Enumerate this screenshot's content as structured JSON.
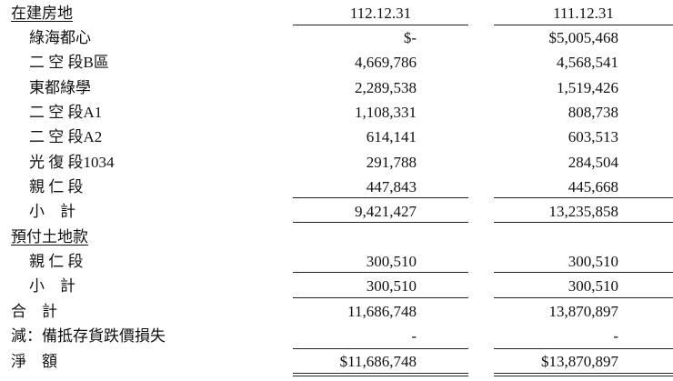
{
  "header": {
    "label": "在建房地",
    "col1": "112.12.31",
    "col2": "111.12.31"
  },
  "rows": [
    {
      "label": "綠海都心",
      "v1": "$-",
      "v2": "$5,005,468"
    },
    {
      "label": "二 空 段B區",
      "v1": "4,669,786",
      "v2": "4,568,541"
    },
    {
      "label": "東都綠學",
      "v1": "2,289,538",
      "v2": "1,519,426"
    },
    {
      "label": "二 空 段A1",
      "v1": "1,108,331",
      "v2": "808,738"
    },
    {
      "label": "二 空 段A2",
      "v1": "614,141",
      "v2": "603,513"
    },
    {
      "label": "光 復 段1034",
      "v1": "291,788",
      "v2": "284,504"
    },
    {
      "label": "親 仁 段",
      "v1": "447,843",
      "v2": "445,668"
    },
    {
      "label": "小    計",
      "v1": "9,421,427",
      "v2": "13,235,858"
    }
  ],
  "section2": {
    "label": "預付土地款"
  },
  "rows2": [
    {
      "label": "親 仁 段",
      "v1": "300,510",
      "v2": "300,510"
    },
    {
      "label": "小    計",
      "v1": "300,510",
      "v2": "300,510"
    }
  ],
  "totals": [
    {
      "label": "合    計",
      "v1": "11,686,748",
      "v2": "13,870,897"
    },
    {
      "label": "減：備抵存貨跌價損失",
      "v1": "-",
      "v2": "-"
    },
    {
      "label": "淨    額",
      "v1": "$11,686,748",
      "v2": "$13,870,897"
    }
  ]
}
